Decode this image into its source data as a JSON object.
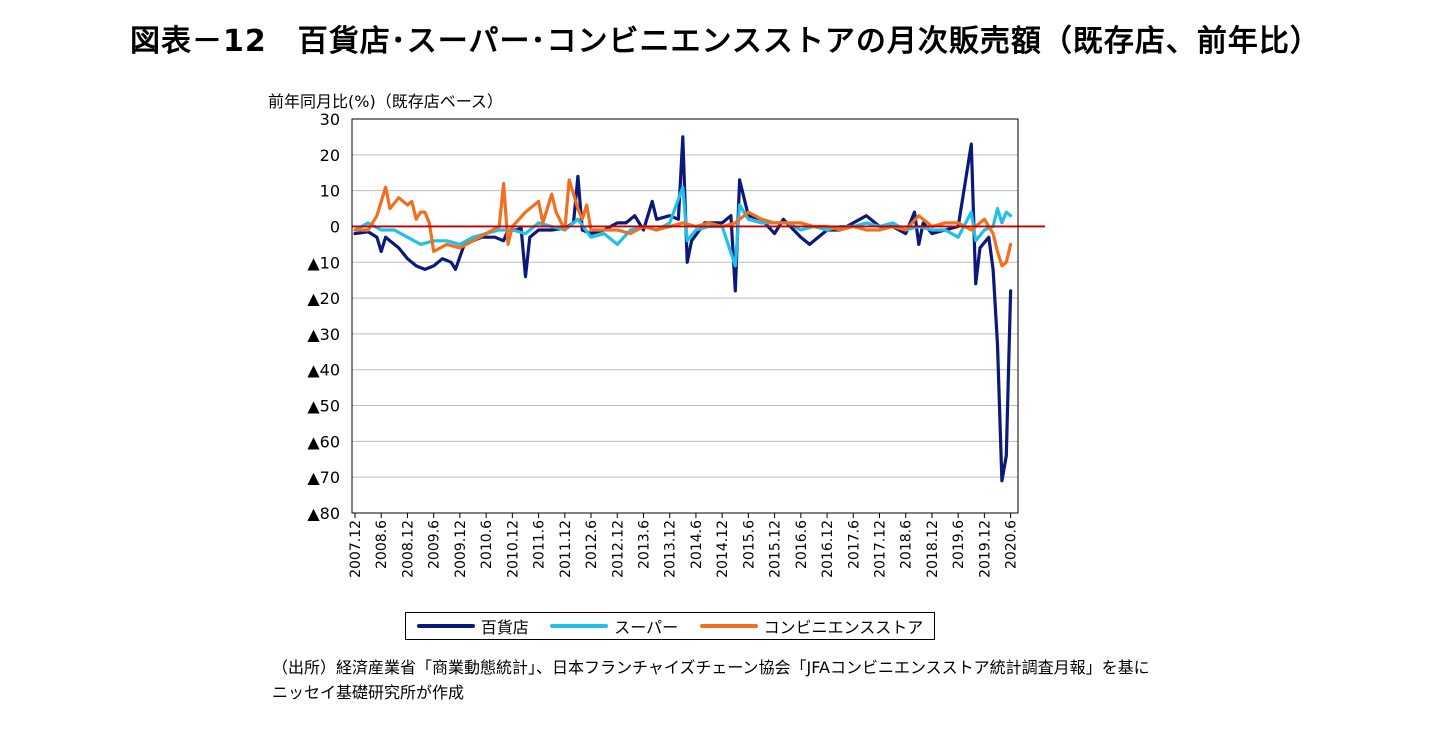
{
  "header": {
    "title": "図表－12　百貨店･スーパー･コンビニエンスストアの月次販売額（既存店、前年比）"
  },
  "footer": {
    "source_line1": "（出所）経済産業省「商業動態統計」、日本フランチャイズチェーン協会「JFAコンビニエンスストア統計調査月報」を基に",
    "source_line2": "ニッセイ基礎研究所が作成"
  },
  "chart_data": {
    "type": "line",
    "ylabel": "前年同月比(%)（既存店ベース）",
    "ylim": [
      -80,
      30
    ],
    "y_ticks": [
      30,
      20,
      10,
      0,
      -10,
      -20,
      -30,
      -40,
      -50,
      -60,
      -70,
      -80
    ],
    "y_tick_labels": [
      "30",
      "20",
      "10",
      "0",
      "▲10",
      "▲20",
      "▲30",
      "▲40",
      "▲50",
      "▲60",
      "▲70",
      "▲80"
    ],
    "x_tick_labels": [
      "2007.12",
      "2008.6",
      "2008.12",
      "2009.6",
      "2009.12",
      "2010.6",
      "2010.12",
      "2011.6",
      "2011.12",
      "2012.6",
      "2012.12",
      "2013.6",
      "2013.12",
      "2014.6",
      "2014.12",
      "2015.6",
      "2015.12",
      "2016.6",
      "2016.12",
      "2017.6",
      "2017.12",
      "2018.6",
      "2018.12",
      "2019.6",
      "2019.12",
      "2020.6"
    ],
    "reference_line": {
      "value": 0,
      "color": "#c00000"
    },
    "grid": "horizontal",
    "legend": "bottom",
    "series": [
      {
        "name": "百貨店",
        "color": "#0b1a7a",
        "keypoints": [
          [
            "2007.12",
            -2
          ],
          [
            "2008.3",
            -1.5
          ],
          [
            "2008.5",
            -3
          ],
          [
            "2008.6",
            -7
          ],
          [
            "2008.7",
            -3
          ],
          [
            "2008.10",
            -6
          ],
          [
            "2008.12",
            -9
          ],
          [
            "2009.2",
            -11
          ],
          [
            "2009.4",
            -12
          ],
          [
            "2009.6",
            -11
          ],
          [
            "2009.8",
            -9
          ],
          [
            "2009.10",
            -10
          ],
          [
            "2009.11",
            -12
          ],
          [
            "2010.1",
            -5
          ],
          [
            "2010.3",
            -4
          ],
          [
            "2010.5",
            -3
          ],
          [
            "2010.8",
            -3
          ],
          [
            "2010.10",
            -4
          ],
          [
            "2010.11",
            -1
          ],
          [
            "2011.1",
            -1
          ],
          [
            "2011.2",
            -0.5
          ],
          [
            "2011.3",
            -14
          ],
          [
            "2011.4",
            -3
          ],
          [
            "2011.6",
            -1
          ],
          [
            "2011.9",
            -1
          ],
          [
            "2011.12",
            -0.5
          ],
          [
            "2012.2",
            1
          ],
          [
            "2012.3",
            14
          ],
          [
            "2012.4",
            -1
          ],
          [
            "2012.6",
            -2
          ],
          [
            "2012.9",
            -1
          ],
          [
            "2012.12",
            1
          ],
          [
            "2013.2",
            1
          ],
          [
            "2013.4",
            3
          ],
          [
            "2013.6",
            -1
          ],
          [
            "2013.8",
            7
          ],
          [
            "2013.9",
            2
          ],
          [
            "2013.12",
            3
          ],
          [
            "2014.2",
            2
          ],
          [
            "2014.3",
            25
          ],
          [
            "2014.4",
            -10
          ],
          [
            "2014.5",
            -4
          ],
          [
            "2014.8",
            1
          ],
          [
            "2014.12",
            1
          ],
          [
            "2015.2",
            3
          ],
          [
            "2015.3",
            -18
          ],
          [
            "2015.4",
            13
          ],
          [
            "2015.6",
            3
          ],
          [
            "2015.9",
            2
          ],
          [
            "2015.12",
            -2
          ],
          [
            "2016.2",
            2
          ],
          [
            "2016.6",
            -3
          ],
          [
            "2016.8",
            -5
          ],
          [
            "2016.12",
            -1
          ],
          [
            "2017.3",
            -1
          ],
          [
            "2017.6",
            1
          ],
          [
            "2017.9",
            3
          ],
          [
            "2017.12",
            0
          ],
          [
            "2018.3",
            0
          ],
          [
            "2018.6",
            -2
          ],
          [
            "2018.8",
            4
          ],
          [
            "2018.9",
            -5
          ],
          [
            "2018.10",
            1
          ],
          [
            "2018.12",
            -2
          ],
          [
            "2019.3",
            -1
          ],
          [
            "2019.6",
            0
          ],
          [
            "2019.9",
            23
          ],
          [
            "2019.10",
            -16
          ],
          [
            "2019.11",
            -6
          ],
          [
            "2020.1",
            -3
          ],
          [
            "2020.2",
            -12
          ],
          [
            "2020.3",
            -33
          ],
          [
            "2020.4",
            -71
          ],
          [
            "2020.5",
            -64
          ],
          [
            "2020.6",
            -18
          ]
        ]
      },
      {
        "name": "スーパー",
        "color": "#21c0e8",
        "keypoints": [
          [
            "2007.12",
            -1
          ],
          [
            "2008.3",
            1
          ],
          [
            "2008.6",
            -1
          ],
          [
            "2008.9",
            -1
          ],
          [
            "2008.12",
            -3
          ],
          [
            "2009.3",
            -5
          ],
          [
            "2009.6",
            -4
          ],
          [
            "2009.9",
            -4
          ],
          [
            "2009.12",
            -5
          ],
          [
            "2010.3",
            -3
          ],
          [
            "2010.6",
            -2
          ],
          [
            "2010.9",
            -1
          ],
          [
            "2010.12",
            -1
          ],
          [
            "2011.3",
            -2
          ],
          [
            "2011.6",
            1
          ],
          [
            "2011.9",
            0
          ],
          [
            "2011.12",
            -1
          ],
          [
            "2012.3",
            2
          ],
          [
            "2012.6",
            -3
          ],
          [
            "2012.9",
            -2
          ],
          [
            "2012.12",
            -5
          ],
          [
            "2013.3",
            -1
          ],
          [
            "2013.6",
            0
          ],
          [
            "2013.9",
            -1
          ],
          [
            "2013.12",
            1
          ],
          [
            "2014.3",
            11
          ],
          [
            "2014.4",
            -4
          ],
          [
            "2014.6",
            -1
          ],
          [
            "2014.9",
            0
          ],
          [
            "2014.12",
            0
          ],
          [
            "2015.3",
            -11
          ],
          [
            "2015.4",
            6
          ],
          [
            "2015.6",
            2
          ],
          [
            "2015.9",
            1
          ],
          [
            "2015.12",
            1
          ],
          [
            "2016.3",
            1
          ],
          [
            "2016.6",
            -1
          ],
          [
            "2016.9",
            0
          ],
          [
            "2016.12",
            -1
          ],
          [
            "2017.3",
            0
          ],
          [
            "2017.6",
            0
          ],
          [
            "2017.9",
            1
          ],
          [
            "2017.12",
            0
          ],
          [
            "2018.3",
            1
          ],
          [
            "2018.6",
            -1
          ],
          [
            "2018.9",
            0
          ],
          [
            "2018.12",
            -1
          ],
          [
            "2019.3",
            -1
          ],
          [
            "2019.6",
            -3
          ],
          [
            "2019.9",
            4
          ],
          [
            "2019.10",
            -4
          ],
          [
            "2019.12",
            -1
          ],
          [
            "2020.2",
            0
          ],
          [
            "2020.3",
            5
          ],
          [
            "2020.4",
            1
          ],
          [
            "2020.5",
            4
          ],
          [
            "2020.6",
            3
          ]
        ]
      },
      {
        "name": "コンビニエンスストア",
        "color": "#f07020",
        "keypoints": [
          [
            "2007.12",
            -1
          ],
          [
            "2008.3",
            -1
          ],
          [
            "2008.5",
            3
          ],
          [
            "2008.7",
            11
          ],
          [
            "2008.8",
            5
          ],
          [
            "2008.10",
            8
          ],
          [
            "2008.12",
            6
          ],
          [
            "2009.1",
            7
          ],
          [
            "2009.2",
            2
          ],
          [
            "2009.3",
            4
          ],
          [
            "2009.4",
            4
          ],
          [
            "2009.5",
            1
          ],
          [
            "2009.6",
            -7
          ],
          [
            "2009.9",
            -5
          ],
          [
            "2009.12",
            -6
          ],
          [
            "2010.3",
            -4
          ],
          [
            "2010.6",
            -2
          ],
          [
            "2010.9",
            0
          ],
          [
            "2010.10",
            12
          ],
          [
            "2010.11",
            -5
          ],
          [
            "2010.12",
            0
          ],
          [
            "2011.3",
            4
          ],
          [
            "2011.6",
            7
          ],
          [
            "2011.7",
            1
          ],
          [
            "2011.9",
            9
          ],
          [
            "2011.10",
            4
          ],
          [
            "2011.12",
            -1
          ],
          [
            "2012.1",
            13
          ],
          [
            "2012.3",
            5
          ],
          [
            "2012.4",
            2
          ],
          [
            "2012.5",
            6
          ],
          [
            "2012.6",
            -1
          ],
          [
            "2012.9",
            -1
          ],
          [
            "2012.12",
            -1
          ],
          [
            "2013.3",
            -2
          ],
          [
            "2013.6",
            0
          ],
          [
            "2013.9",
            -1
          ],
          [
            "2013.12",
            0
          ],
          [
            "2014.3",
            1
          ],
          [
            "2014.6",
            0
          ],
          [
            "2014.9",
            1
          ],
          [
            "2014.12",
            0
          ],
          [
            "2015.3",
            1
          ],
          [
            "2015.6",
            4
          ],
          [
            "2015.9",
            2
          ],
          [
            "2015.12",
            1
          ],
          [
            "2016.3",
            1
          ],
          [
            "2016.6",
            1
          ],
          [
            "2016.9",
            0
          ],
          [
            "2016.12",
            0
          ],
          [
            "2017.3",
            -1
          ],
          [
            "2017.6",
            0
          ],
          [
            "2017.9",
            -1
          ],
          [
            "2017.12",
            -1
          ],
          [
            "2018.3",
            0
          ],
          [
            "2018.6",
            -1
          ],
          [
            "2018.9",
            3
          ],
          [
            "2018.12",
            0
          ],
          [
            "2019.3",
            1
          ],
          [
            "2019.6",
            1
          ],
          [
            "2019.9",
            -1
          ],
          [
            "2019.12",
            2
          ],
          [
            "2020.2",
            -2
          ],
          [
            "2020.3",
            -7
          ],
          [
            "2020.4",
            -11
          ],
          [
            "2020.5",
            -10
          ],
          [
            "2020.6",
            -5
          ]
        ]
      }
    ]
  }
}
